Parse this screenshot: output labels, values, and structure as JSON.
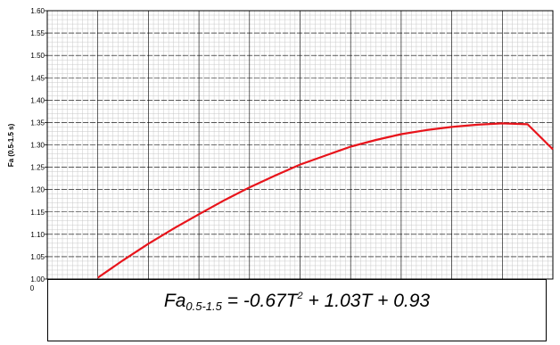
{
  "chart_data": {
    "type": "line",
    "ylabel": "Fa (0.5-1.5 s)",
    "xlabel": "",
    "yticks": [
      "1.00",
      "1.05",
      "1.10",
      "1.15",
      "1.20",
      "1.25",
      "1.30",
      "1.35",
      "1.40",
      "1.45",
      "1.50",
      "1.55",
      "1.60"
    ],
    "ylim": [
      1.0,
      1.6
    ],
    "xlim": [
      0.0,
      1.0
    ],
    "xtick_left": "0",
    "grid": true,
    "series": [
      {
        "color": "#e8141b",
        "x": [
          0.1,
          0.15,
          0.2,
          0.25,
          0.3,
          0.35,
          0.4,
          0.45,
          0.5,
          0.55,
          0.6,
          0.65,
          0.7,
          0.75,
          0.8,
          0.85,
          0.9,
          0.95,
          1.0
        ],
        "y": [
          1.003,
          1.042,
          1.079,
          1.113,
          1.145,
          1.176,
          1.205,
          1.231,
          1.256,
          1.276,
          1.296,
          1.311,
          1.324,
          1.333,
          1.34,
          1.345,
          1.348,
          1.346,
          1.29
        ]
      }
    ],
    "equation": {
      "lhs": "Fa",
      "sub": "0.5-1.5",
      "mid": " = -0.67T",
      "sup": "2",
      "rhs": " + 1.03T + 0.93"
    }
  }
}
